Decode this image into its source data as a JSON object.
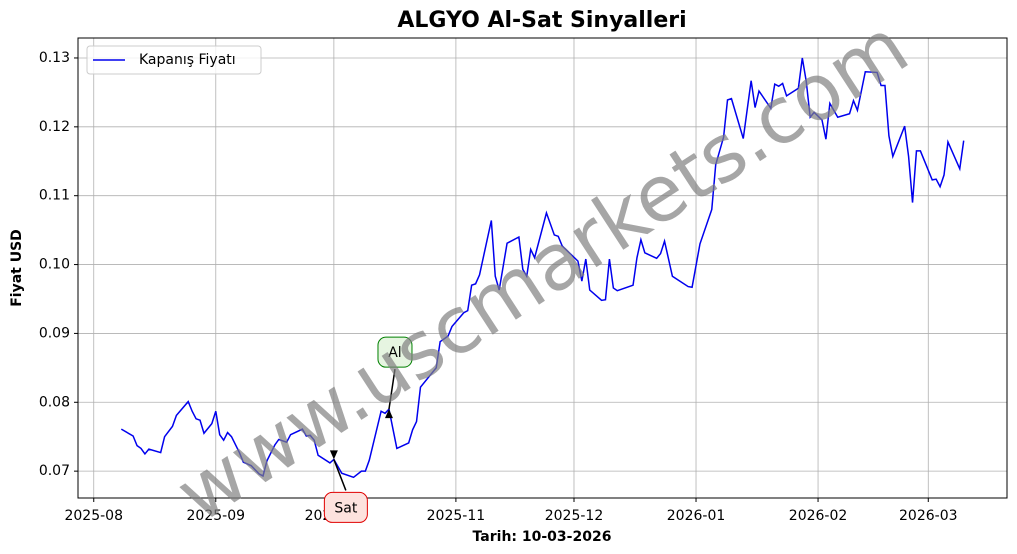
{
  "chart_data": {
    "type": "line",
    "title": "ALGYO Al-Sat Sinyalleri",
    "xlabel": "Tarih: 10-03-2026",
    "ylabel": "Fiyat USD",
    "watermark": "www.uscmarkets.com",
    "grid": true,
    "legend": "upper left",
    "xlim": [
      "2025-07-28",
      "2026-03-21"
    ],
    "xticks": [
      "2025-08",
      "2025-09",
      "2025-10",
      "2025-11",
      "2025-12",
      "2026-01",
      "2026-02",
      "2026-03"
    ],
    "ylim": [
      0.0661,
      0.1329
    ],
    "yticks": [
      0.07,
      0.08,
      0.09,
      {
        "value": 0.1,
        "label": "0.10"
      },
      0.11,
      0.12,
      0.13
    ],
    "x": [
      "2025-08-08",
      "2025-08-11",
      "2025-08-12",
      "2025-08-13",
      "2025-08-14",
      "2025-08-15",
      "2025-08-18",
      "2025-08-19",
      "2025-08-21",
      "2025-08-22",
      "2025-08-25",
      "2025-08-26",
      "2025-08-27",
      "2025-08-28",
      "2025-08-29",
      "2025-08-31",
      "2025-09-01",
      "2025-09-02",
      "2025-09-03",
      "2025-09-04",
      "2025-09-05",
      "2025-09-07",
      "2025-09-08",
      "2025-09-10",
      "2025-09-12",
      "2025-09-13",
      "2025-09-14",
      "2025-09-16",
      "2025-09-17",
      "2025-09-19",
      "2025-09-20",
      "2025-09-23",
      "2025-09-24",
      "2025-09-25",
      "2025-09-26",
      "2025-09-27",
      "2025-09-30",
      "2025-10-01",
      "2025-10-03",
      "2025-10-06",
      "2025-10-08",
      "2025-10-09",
      "2025-10-10",
      "2025-10-13",
      "2025-10-14",
      "2025-10-15",
      "2025-10-17",
      "2025-10-20",
      "2025-10-21",
      "2025-10-22",
      "2025-10-23",
      "2025-10-27",
      "2025-10-28",
      "2025-10-30",
      "2025-10-31",
      "2025-11-03",
      "2025-11-04",
      "2025-11-05",
      "2025-11-06",
      "2025-11-07",
      "2025-11-10",
      "2025-11-11",
      "2025-11-12",
      "2025-11-14",
      "2025-11-17",
      "2025-11-18",
      "2025-11-19",
      "2025-11-20",
      "2025-11-21",
      "2025-11-24",
      "2025-11-26",
      "2025-11-27",
      "2025-11-28",
      "2025-12-02",
      "2025-12-03",
      "2025-12-04",
      "2025-12-05",
      "2025-12-08",
      "2025-12-09",
      "2025-12-10",
      "2025-12-11",
      "2025-12-12",
      "2025-12-16",
      "2025-12-17",
      "2025-12-18",
      "2025-12-19",
      "2025-12-22",
      "2025-12-23",
      "2025-12-24",
      "2025-12-26",
      "2025-12-30",
      "2025-12-31",
      "2026-01-02",
      "2026-01-05",
      "2026-01-06",
      "2026-01-08",
      "2026-01-09",
      "2026-01-10",
      "2026-01-13",
      "2026-01-15",
      "2026-01-16",
      "2026-01-17",
      "2026-01-20",
      "2026-01-21",
      "2026-01-22",
      "2026-01-23",
      "2026-01-24",
      "2026-01-27",
      "2026-01-28",
      "2026-01-29",
      "2026-01-30",
      "2026-01-31",
      "2026-02-02",
      "2026-02-03",
      "2026-02-04",
      "2026-02-06",
      "2026-02-09",
      "2026-02-10",
      "2026-02-11",
      "2026-02-13",
      "2026-02-16",
      "2026-02-17",
      "2026-02-18",
      "2026-02-19",
      "2026-02-20",
      "2026-02-23",
      "2026-02-24",
      "2026-02-25",
      "2026-02-26",
      "2026-02-27",
      "2026-03-02",
      "2026-03-03",
      "2026-03-04",
      "2026-03-05",
      "2026-03-06",
      "2026-03-09",
      "2026-03-10"
    ],
    "series": [
      {
        "name": "Kapanış Fiyatı",
        "color": "#0000ee",
        "values": [
          0.0761,
          0.0751,
          0.0737,
          0.0733,
          0.0725,
          0.0732,
          0.0727,
          0.075,
          0.0765,
          0.0781,
          0.0801,
          0.0787,
          0.0776,
          0.0774,
          0.0755,
          0.0769,
          0.0787,
          0.0753,
          0.0745,
          0.0756,
          0.075,
          0.0727,
          0.0713,
          0.0708,
          0.0696,
          0.0693,
          0.0715,
          0.0738,
          0.0746,
          0.0742,
          0.0753,
          0.0761,
          0.0751,
          0.0752,
          0.0745,
          0.0723,
          0.0712,
          0.0717,
          0.0697,
          0.0691,
          0.07,
          0.07,
          0.0716,
          0.0787,
          0.0784,
          0.079,
          0.0733,
          0.0741,
          0.076,
          0.0772,
          0.0822,
          0.085,
          0.0888,
          0.0896,
          0.091,
          0.093,
          0.0933,
          0.097,
          0.0972,
          0.0985,
          0.1064,
          0.0983,
          0.0963,
          0.1031,
          0.104,
          0.0993,
          0.0983,
          0.1022,
          0.101,
          0.1075,
          0.1043,
          0.1041,
          0.1027,
          0.1005,
          0.0976,
          0.1008,
          0.0963,
          0.0948,
          0.0949,
          0.1008,
          0.0966,
          0.0962,
          0.097,
          0.101,
          0.1036,
          0.1017,
          0.1009,
          0.1016,
          0.1034,
          0.0983,
          0.0968,
          0.0967,
          0.103,
          0.108,
          0.1145,
          0.1185,
          0.1239,
          0.1241,
          0.1183,
          0.1267,
          0.1228,
          0.1252,
          0.1227,
          0.1262,
          0.1259,
          0.1263,
          0.1245,
          0.1256,
          0.13,
          0.1266,
          0.1214,
          0.1221,
          0.121,
          0.1182,
          0.1234,
          0.1214,
          0.1219,
          0.1238,
          0.1224,
          0.128,
          0.1279,
          0.126,
          0.126,
          0.1187,
          0.1157,
          0.1201,
          0.1157,
          0.109,
          0.1165,
          0.1165,
          0.1123,
          0.1124,
          0.1113,
          0.113,
          0.1178,
          0.1139,
          0.118
        ]
      }
    ],
    "annotations": [
      {
        "text": "Al",
        "x": "2025-10-15",
        "y": 0.079,
        "color": "#008000",
        "fill": "#e6f5e1",
        "side": "above"
      },
      {
        "text": "Sat",
        "x": "2025-10-01",
        "y": 0.0717,
        "color": "#e00000",
        "fill": "#fde2de",
        "side": "below"
      }
    ]
  }
}
